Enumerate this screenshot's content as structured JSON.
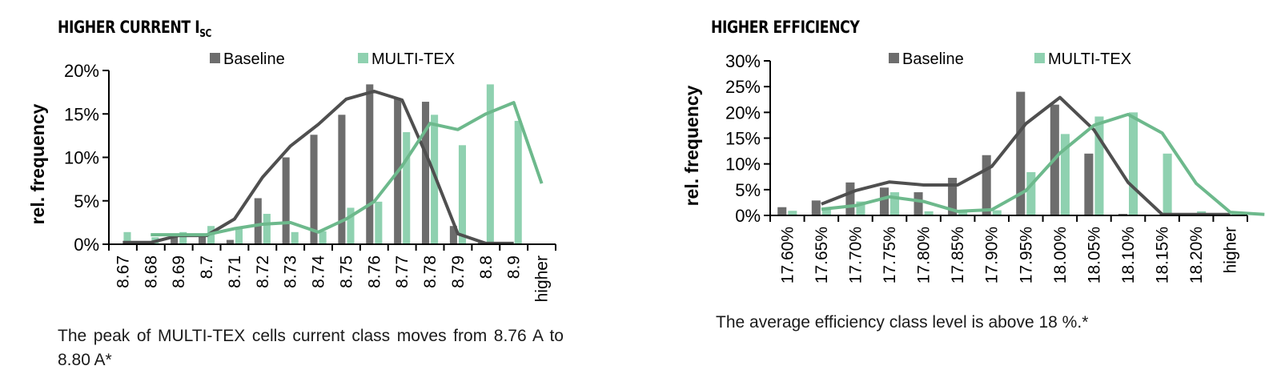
{
  "colors": {
    "baseline": "#6d6d6d",
    "multitex": "#8fd1b0",
    "baseline_line": "#4f4f4f",
    "multitex_line": "#6db98c"
  },
  "chart_data": [
    {
      "type": "bar",
      "heading_main": "HIGHER CURRENT I",
      "heading_sub": "SC",
      "ylabel": "rel. frequency",
      "ylim": [
        0,
        20
      ],
      "yticks": [
        "0%",
        "5%",
        "10%",
        "15%",
        "20%"
      ],
      "yticks_values": [
        0,
        5,
        10,
        15,
        20
      ],
      "categories": [
        "8.67",
        "8.68",
        "8.69",
        "8.7",
        "8.71",
        "8.72",
        "8.73",
        "8.74",
        "8.75",
        "8.76",
        "8.77",
        "8.78",
        "8.79",
        "8.8",
        "8.9",
        "higher"
      ],
      "series": [
        {
          "name": "Baseline",
          "values": [
            0,
            0.3,
            1.2,
            1.2,
            0.5,
            5.3,
            10.0,
            12.6,
            14.9,
            18.4,
            16.8,
            16.4,
            2.1,
            0.2,
            0,
            0
          ]
        },
        {
          "name": "MULTI-TEX",
          "values": [
            1.4,
            0.8,
            1.4,
            2.1,
            1.9,
            3.5,
            1.4,
            1.5,
            4.2,
            4.9,
            12.9,
            14.9,
            11.4,
            18.4,
            14.2,
            0
          ]
        }
      ],
      "trendlines": [
        {
          "series": "Baseline",
          "x": [
            0.5,
            1.5,
            2.5,
            3.5,
            4.5,
            5.5,
            6.5,
            7.5,
            8.5,
            9.5,
            10.5,
            11.5,
            12.5,
            13.5,
            14.5
          ],
          "values": [
            0.2,
            0.2,
            1.0,
            1.0,
            2.9,
            7.7,
            11.3,
            13.8,
            16.7,
            17.6,
            16.6,
            9.3,
            1.2,
            0.1,
            0.1
          ]
        },
        {
          "series": "MULTI-TEX",
          "x": [
            1.5,
            2.5,
            3.5,
            4.5,
            5.5,
            6.5,
            7.5,
            8.5,
            9.5,
            10.5,
            11.5,
            12.5,
            13.5,
            14.5,
            15.5
          ],
          "values": [
            1.1,
            1.1,
            1.1,
            1.8,
            2.3,
            2.5,
            1.4,
            2.9,
            4.9,
            9.0,
            13.9,
            13.2,
            15.0,
            16.3,
            7.0
          ]
        }
      ],
      "legend": "top",
      "caption": "The peak of MULTI-TEX cells current class moves from 8.76 A to 8.80 A*"
    },
    {
      "type": "bar",
      "heading_main": "HIGHER EFFICIENCY",
      "heading_sub": "",
      "ylabel": "rel. frequency",
      "ylim": [
        0,
        30
      ],
      "yticks": [
        "0%",
        "5%",
        "10%",
        "15%",
        "20%",
        "25%",
        "30%"
      ],
      "yticks_values": [
        0,
        5,
        10,
        15,
        20,
        25,
        30
      ],
      "categories": [
        "17.60%",
        "17.65%",
        "17.70%",
        "17.75%",
        "17.80%",
        "17.85%",
        "17.90%",
        "17.95%",
        "18.00%",
        "18.05%",
        "18.10%",
        "18.15%",
        "18.20%",
        "higher"
      ],
      "series": [
        {
          "name": "Baseline",
          "values": [
            1.6,
            2.9,
            6.4,
            5.4,
            4.5,
            7.3,
            11.7,
            24.0,
            21.5,
            12.0,
            0.3,
            0,
            0,
            0
          ]
        },
        {
          "name": "MULTI-TEX",
          "values": [
            0.9,
            1.1,
            2.7,
            4.5,
            0.8,
            0.7,
            1.0,
            8.4,
            15.8,
            19.2,
            20.0,
            12.0,
            0.8,
            0.3
          ]
        }
      ],
      "trendlines": [
        {
          "series": "Baseline",
          "x": [
            1.5,
            2.5,
            3.5,
            4.5,
            5.5,
            6.5,
            7.5,
            8.5,
            9.5,
            10.5,
            11.5,
            12.5,
            13.5
          ],
          "values": [
            2.2,
            4.8,
            6.5,
            5.9,
            5.9,
            9.5,
            17.8,
            22.9,
            16.6,
            6.4,
            0.2,
            0.2,
            0.2
          ]
        },
        {
          "series": "MULTI-TEX",
          "x": [
            1.5,
            2.5,
            3.5,
            4.5,
            5.5,
            6.5,
            7.5,
            8.5,
            9.5,
            10.5,
            11.5,
            12.5,
            13.5,
            14.5
          ],
          "values": [
            1.2,
            1.9,
            3.6,
            2.7,
            0.8,
            1.1,
            4.8,
            12.1,
            17.5,
            19.6,
            16.0,
            6.2,
            0.6,
            0.2
          ]
        }
      ],
      "legend": "top",
      "caption": "The average efficiency class level is above 18 %.*"
    }
  ]
}
